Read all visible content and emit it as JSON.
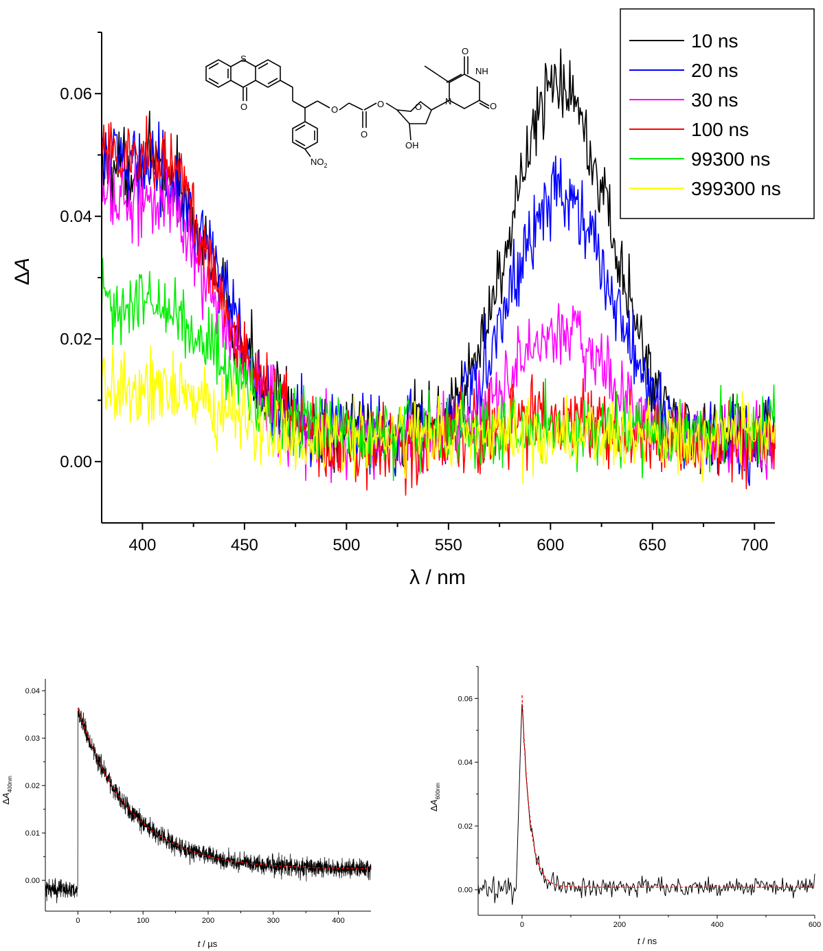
{
  "chart_data": [
    {
      "id": "main",
      "type": "line",
      "xlabel_parts": [
        "λ",
        " / nm"
      ],
      "ylabel_parts": [
        "Δ",
        "A"
      ],
      "xlim": [
        380,
        710
      ],
      "ylim": [
        -0.01,
        0.07
      ],
      "xticks": [
        400,
        450,
        500,
        550,
        600,
        650,
        700
      ],
      "xtick_labels": [
        "400",
        "450",
        "500",
        "550",
        "600",
        "650",
        "700"
      ],
      "yticks": [
        0.0,
        0.02,
        0.04,
        0.06
      ],
      "ytick_labels": [
        "0.00",
        "0.02",
        "0.04",
        "0.06"
      ],
      "legend_position": "top-right",
      "grid": false,
      "series_model": {
        "x_start": 380,
        "x_end": 710,
        "x_step": 0.5,
        "note_shape": "band near 400 nm decaying to baseline by ~470 nm; band centered ~605 nm"
      },
      "series": [
        {
          "name": "10 ns",
          "color": "#000000",
          "band400": 0.044,
          "band600": 0.058,
          "baseline": 0.004,
          "noise": 0.0045
        },
        {
          "name": "20 ns",
          "color": "#0000ff",
          "band400": 0.045,
          "band600": 0.04,
          "baseline": 0.004,
          "noise": 0.0045
        },
        {
          "name": "30 ns",
          "color": "#ff00ff",
          "band400": 0.04,
          "band600": 0.018,
          "baseline": 0.003,
          "noise": 0.0045
        },
        {
          "name": "100 ns",
          "color": "#ff0000",
          "band400": 0.047,
          "band600": 0.004,
          "baseline": 0.003,
          "noise": 0.0045
        },
        {
          "name": "99300 ns",
          "color": "#00ee00",
          "band400": 0.021,
          "band600": 0.0,
          "baseline": 0.005,
          "noise": 0.0042
        },
        {
          "name": "399300 ns",
          "color": "#ffff00",
          "band400": 0.008,
          "band600": 0.0,
          "baseline": 0.004,
          "noise": 0.0042
        }
      ],
      "structure_labels": {
        "s": "S",
        "o1": "O",
        "o2": "O",
        "o3": "O",
        "o4": "O",
        "o5": "O",
        "o6": "O",
        "o7": "O",
        "no2": "NO",
        "no2_sub": "2",
        "nh": "NH",
        "n": "N",
        "oh": "OH"
      }
    },
    {
      "id": "kinetics_400",
      "type": "line",
      "xlabel_parts": [
        "t",
        " / µs"
      ],
      "ylabel_parts": [
        "Δ",
        "A",
        "400nm"
      ],
      "xlim": [
        -50,
        450
      ],
      "ylim": [
        -0.0065,
        0.0425
      ],
      "xticks": [
        0,
        100,
        200,
        300,
        400
      ],
      "xtick_labels": [
        "0",
        "100",
        "200",
        "300",
        "400"
      ],
      "yticks": [
        0.0,
        0.01,
        0.02,
        0.03,
        0.04
      ],
      "ytick_labels": [
        "0.00",
        "0.01",
        "0.02",
        "0.03",
        "0.04"
      ],
      "series": [
        {
          "name": "",
          "color": "#000000",
          "pre_level": -0.002,
          "amplitude": 0.034,
          "tau": 80,
          "offset": 0.0023,
          "noise": 0.0014
        },
        {
          "name": "",
          "color": "#ff0000",
          "style": "dashed",
          "amplitude": 0.034,
          "tau": 80,
          "offset": 0.0023
        }
      ]
    },
    {
      "id": "kinetics_600",
      "type": "line",
      "xlabel_parts": [
        "t",
        " / ns"
      ],
      "ylabel_parts": [
        "Δ",
        "A",
        "600nm"
      ],
      "xlim": [
        -90,
        600
      ],
      "ylim": [
        -0.008,
        0.07
      ],
      "xticks": [
        0,
        200,
        400,
        600
      ],
      "xtick_labels": [
        "0",
        "200",
        "400",
        "600"
      ],
      "yticks": [
        0.0,
        0.02,
        0.04,
        0.06
      ],
      "ytick_labels": [
        "0.00",
        "0.02",
        "0.04",
        "0.06"
      ],
      "series": [
        {
          "name": "",
          "color": "#000000",
          "peak": 0.061,
          "tau": 16,
          "offset": 0.0008,
          "noise": 0.0022
        },
        {
          "name": "",
          "color": "#ff0000",
          "style": "dashed",
          "peak": 0.061,
          "tau": 16,
          "offset": 0.0008
        }
      ]
    }
  ]
}
